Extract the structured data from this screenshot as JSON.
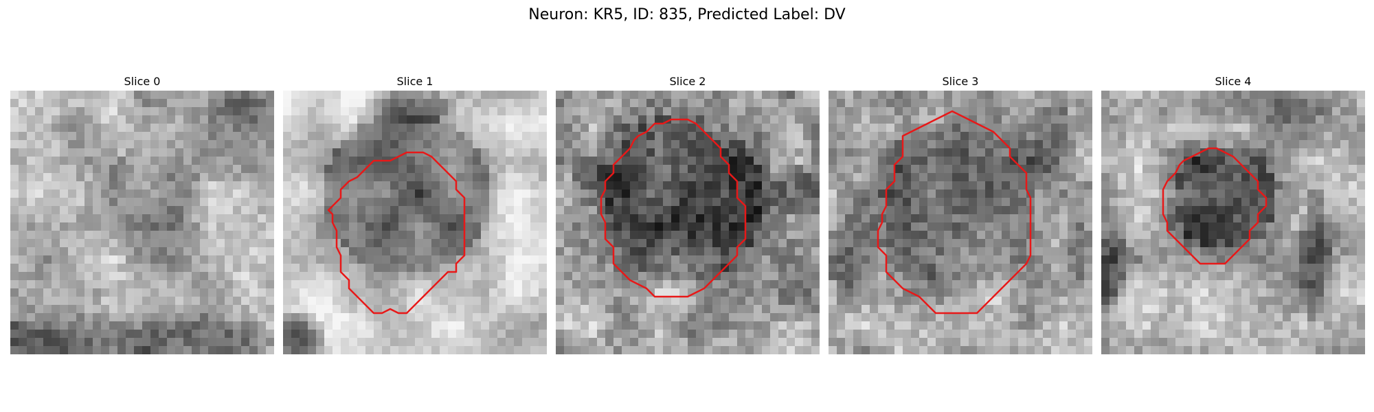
{
  "figure": {
    "title": "Neuron: KR5, ID: 835, Predicted Label: DV"
  },
  "panels": [
    {
      "label": "Slice 0",
      "has_contour": false
    },
    {
      "label": "Slice 1",
      "has_contour": true
    },
    {
      "label": "Slice 2",
      "has_contour": true
    },
    {
      "label": "Slice 3",
      "has_contour": true
    },
    {
      "label": "Slice 4",
      "has_contour": true
    }
  ],
  "colors": {
    "contour": "#e81818",
    "colormap": "gray"
  }
}
